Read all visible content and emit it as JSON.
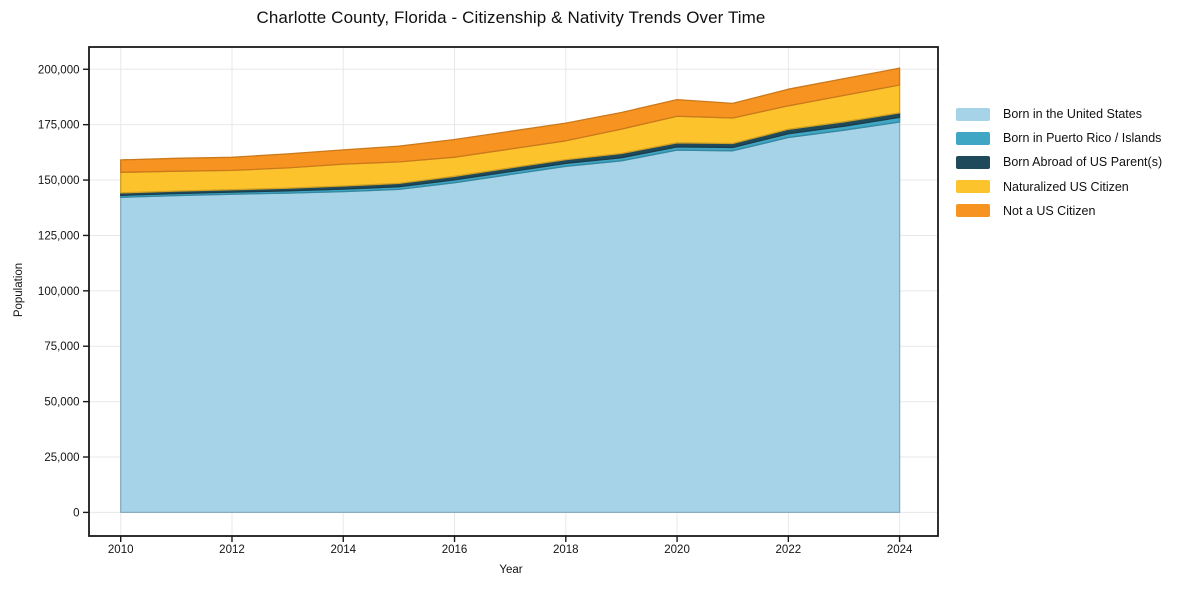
{
  "chart_data": {
    "type": "area",
    "stacked": true,
    "title": "Charlotte County, Florida - Citizenship & Nativity Trends Over Time",
    "xlabel": "Year",
    "ylabel": "Population",
    "grid": true,
    "legend_position": "right-outside",
    "x": [
      2010,
      2011,
      2012,
      2013,
      2014,
      2015,
      2016,
      2017,
      2018,
      2019,
      2020,
      2021,
      2022,
      2023,
      2024
    ],
    "xlim": [
      2009.43,
      2024.69
    ],
    "ylim": [
      -10650,
      210050
    ],
    "xtick_values": [
      2010,
      2012,
      2014,
      2016,
      2018,
      2020,
      2022,
      2024
    ],
    "xtick_labels": [
      "2010",
      "2012",
      "2014",
      "2016",
      "2018",
      "2020",
      "2022",
      "2024"
    ],
    "ytick_values": [
      0,
      25000,
      50000,
      75000,
      100000,
      125000,
      150000,
      175000,
      200000
    ],
    "ytick_labels": [
      "0",
      "25,000",
      "50,000",
      "75,000",
      "100,000",
      "125,000",
      "150,000",
      "175,000",
      "200,000"
    ],
    "colors": {
      "grid": "#e8e8e8",
      "frame": "#1a1a1a",
      "text": "#111111"
    },
    "series": [
      {
        "name": "Born in the United States",
        "color": "#a6d3e8",
        "values": [
          142200,
          143000,
          143600,
          144100,
          144800,
          145800,
          148800,
          152500,
          156200,
          158700,
          163500,
          163200,
          169200,
          172500,
          176200
        ]
      },
      {
        "name": "Born in Puerto Rico / Islands",
        "color": "#3fa6c4",
        "values": [
          900,
          900,
          950,
          1000,
          1100,
          1200,
          1300,
          1300,
          1350,
          1400,
          1500,
          1500,
          1700,
          1800,
          2100
        ]
      },
      {
        "name": "Born Abroad of US Parent(s)",
        "color": "#1f4a5c",
        "values": [
          1100,
          1100,
          1100,
          1200,
          1400,
          1500,
          1600,
          1700,
          1700,
          1900,
          1800,
          1800,
          2000,
          2000,
          2000
        ]
      },
      {
        "name": "Naturalized US Citizen",
        "color": "#fdc32c",
        "values": [
          9300,
          9000,
          8700,
          9200,
          9900,
          9700,
          8600,
          8500,
          8450,
          11000,
          12000,
          11500,
          10600,
          11900,
          12600
        ]
      },
      {
        "name": "Not a US Citizen",
        "color": "#f79421",
        "values": [
          5600,
          5800,
          5900,
          6300,
          6400,
          7100,
          8000,
          8000,
          8000,
          7500,
          7500,
          6600,
          7500,
          7600,
          7600
        ]
      }
    ],
    "totals": [
      159100,
      159800,
      160250,
      161800,
      163600,
      165300,
      168300,
      172000,
      175700,
      180500,
      186300,
      184600,
      191000,
      195800,
      200500
    ]
  }
}
